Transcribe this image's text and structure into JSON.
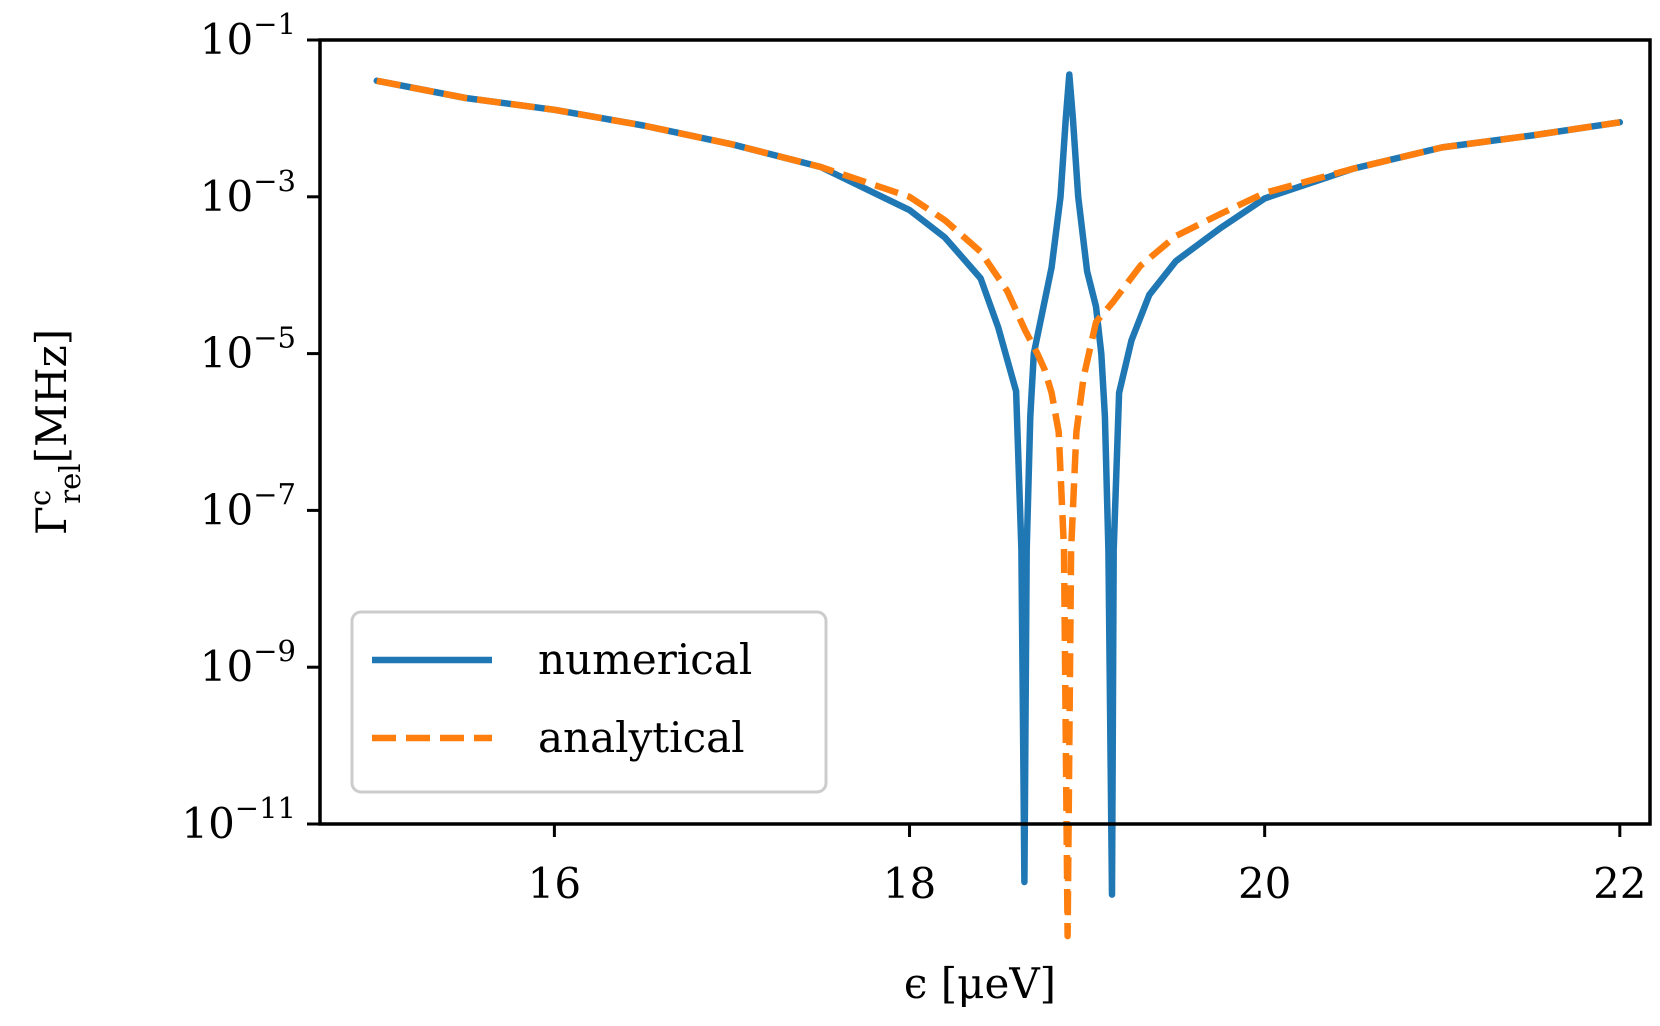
{
  "chart_data": {
    "type": "line",
    "xlabel": "ϵ [μeV]",
    "ylabel_main": "Γ",
    "ylabel_sup": "c",
    "ylabel_sub": "rel",
    "ylabel_unit": "[MHz]",
    "xlim": [
      14.68,
      22.17
    ],
    "ylim_log10": [
      -1.0,
      -11.0
    ],
    "yscale": "log",
    "xticks": [
      16,
      18,
      20,
      22
    ],
    "xtick_labels": [
      "16",
      "18",
      "20",
      "22"
    ],
    "yticks_log10": [
      -1,
      -3,
      -5,
      -7,
      -9,
      -11
    ],
    "ytick_base": "10",
    "ytick_exponents": [
      "−1",
      "−3",
      "−5",
      "−7",
      "−9",
      "−11"
    ],
    "grid": false,
    "legend_position": "lower-left",
    "series": [
      {
        "name": "numerical",
        "color": "#1f77b4",
        "style": "solid",
        "points_log10": [
          [
            15.0,
            -1.52
          ],
          [
            15.5,
            -1.74
          ],
          [
            16.0,
            -1.89
          ],
          [
            16.5,
            -2.09
          ],
          [
            17.0,
            -2.33
          ],
          [
            17.5,
            -2.62
          ],
          [
            18.0,
            -3.17
          ],
          [
            18.2,
            -3.52
          ],
          [
            18.4,
            -4.04
          ],
          [
            18.5,
            -4.67
          ],
          [
            18.6,
            -5.48
          ],
          [
            18.63,
            -7.5
          ],
          [
            18.64,
            -10.0
          ],
          [
            18.647,
            -11.74
          ],
          [
            18.66,
            -7.5
          ],
          [
            18.68,
            -5.8
          ],
          [
            18.7,
            -5.0
          ],
          [
            18.75,
            -4.45
          ],
          [
            18.8,
            -3.9
          ],
          [
            18.85,
            -3.0
          ],
          [
            18.88,
            -2.0
          ],
          [
            18.9,
            -1.44
          ],
          [
            18.92,
            -2.0
          ],
          [
            18.95,
            -3.0
          ],
          [
            19.0,
            -3.95
          ],
          [
            19.05,
            -4.4
          ],
          [
            19.08,
            -5.0
          ],
          [
            19.1,
            -5.8
          ],
          [
            19.12,
            -7.5
          ],
          [
            19.14,
            -11.9
          ],
          [
            19.15,
            -7.5
          ],
          [
            19.18,
            -5.5
          ],
          [
            19.25,
            -4.83
          ],
          [
            19.35,
            -4.25
          ],
          [
            19.5,
            -3.82
          ],
          [
            19.75,
            -3.4
          ],
          [
            20.0,
            -3.02
          ],
          [
            20.5,
            -2.64
          ],
          [
            21.0,
            -2.37
          ],
          [
            21.5,
            -2.22
          ],
          [
            22.0,
            -2.05
          ]
        ]
      },
      {
        "name": "analytical",
        "color": "#ff7f0e",
        "style": "dashed",
        "points_log10": [
          [
            15.0,
            -1.52
          ],
          [
            15.5,
            -1.74
          ],
          [
            16.0,
            -1.89
          ],
          [
            16.5,
            -2.09
          ],
          [
            17.0,
            -2.33
          ],
          [
            17.5,
            -2.62
          ],
          [
            18.0,
            -3.0
          ],
          [
            18.2,
            -3.3
          ],
          [
            18.4,
            -3.7
          ],
          [
            18.55,
            -4.2
          ],
          [
            18.65,
            -4.7
          ],
          [
            18.72,
            -5.0
          ],
          [
            18.76,
            -5.2
          ],
          [
            18.8,
            -5.5
          ],
          [
            18.84,
            -6.0
          ],
          [
            18.87,
            -7.5
          ],
          [
            18.89,
            -12.43
          ],
          [
            18.91,
            -7.5
          ],
          [
            18.94,
            -6.0
          ],
          [
            18.98,
            -5.3
          ],
          [
            19.05,
            -4.6
          ],
          [
            19.15,
            -4.33
          ],
          [
            19.3,
            -3.88
          ],
          [
            19.5,
            -3.5
          ],
          [
            19.75,
            -3.22
          ],
          [
            20.0,
            -2.95
          ],
          [
            20.5,
            -2.64
          ],
          [
            21.0,
            -2.37
          ],
          [
            21.5,
            -2.22
          ],
          [
            22.0,
            -2.05
          ]
        ]
      }
    ]
  }
}
